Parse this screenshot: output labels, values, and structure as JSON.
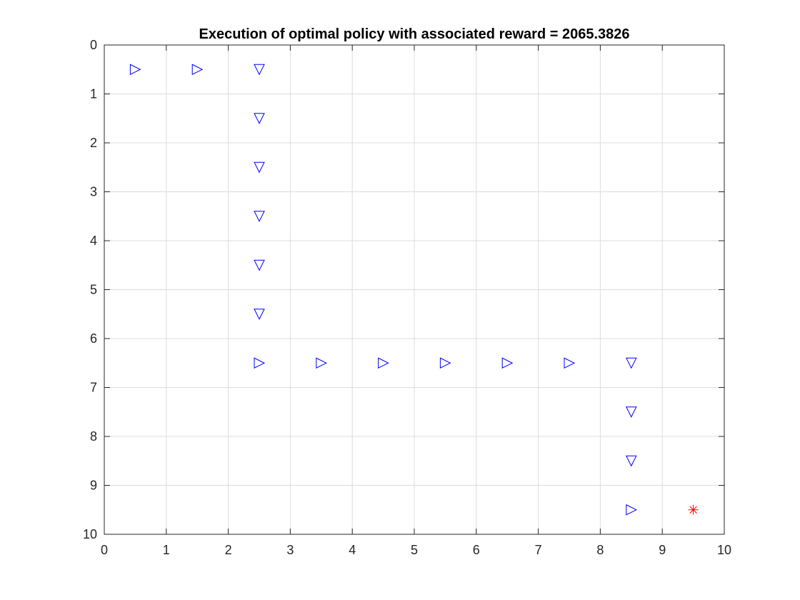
{
  "chart_data": {
    "type": "scatter",
    "title": "Execution of optimal policy with associated reward = 2065.3826",
    "xlabel": "",
    "ylabel": "",
    "xlim": [
      0,
      10
    ],
    "ylim": [
      0,
      10
    ],
    "y_direction": "reversed",
    "grid": true,
    "x_ticks": [
      "0",
      "1",
      "2",
      "3",
      "4",
      "5",
      "6",
      "7",
      "8",
      "9",
      "10"
    ],
    "y_ticks": [
      "0",
      "1",
      "2",
      "3",
      "4",
      "5",
      "6",
      "7",
      "8",
      "9",
      "10"
    ],
    "series": [
      {
        "marker": "triangle-right",
        "color": "#0000ff",
        "points": [
          {
            "x": 0.5,
            "y": 0.5
          },
          {
            "x": 1.5,
            "y": 0.5
          },
          {
            "x": 2.5,
            "y": 6.5
          },
          {
            "x": 3.5,
            "y": 6.5
          },
          {
            "x": 4.5,
            "y": 6.5
          },
          {
            "x": 5.5,
            "y": 6.5
          },
          {
            "x": 6.5,
            "y": 6.5
          },
          {
            "x": 7.5,
            "y": 6.5
          },
          {
            "x": 8.5,
            "y": 9.5
          }
        ]
      },
      {
        "marker": "triangle-down",
        "color": "#0000ff",
        "points": [
          {
            "x": 2.5,
            "y": 0.5
          },
          {
            "x": 2.5,
            "y": 1.5
          },
          {
            "x": 2.5,
            "y": 2.5
          },
          {
            "x": 2.5,
            "y": 3.5
          },
          {
            "x": 2.5,
            "y": 4.5
          },
          {
            "x": 2.5,
            "y": 5.5
          },
          {
            "x": 8.5,
            "y": 6.5
          },
          {
            "x": 8.5,
            "y": 7.5
          },
          {
            "x": 8.5,
            "y": 8.5
          }
        ]
      },
      {
        "marker": "asterisk",
        "color": "#ff0000",
        "points": [
          {
            "x": 9.5,
            "y": 9.5
          }
        ]
      }
    ]
  }
}
